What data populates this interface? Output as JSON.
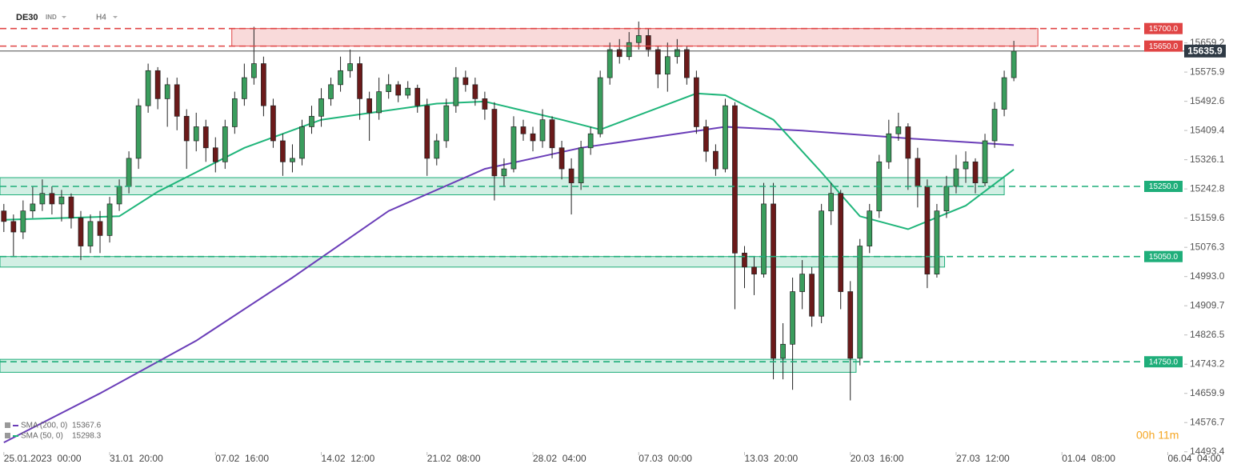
{
  "chart_data": {
    "type": "candlestick",
    "title": "DE30",
    "badge": "IND",
    "timeframe": "H4",
    "timer": "00h 11m",
    "up_color": "#3a9d5d",
    "down_color": "#6b1a1a",
    "last_price_color": "#2f3a45",
    "xlim": [
      -0.4,
      128.2
    ],
    "ylim": [
      14470,
      15770
    ],
    "xticks": [
      {
        "value": 0,
        "label": "25.01.2023  00:00"
      },
      {
        "value": 11,
        "label": "31.01  20:00"
      },
      {
        "value": 22,
        "label": "07.02  16:00"
      },
      {
        "value": 33,
        "label": "14.02  12:00"
      },
      {
        "value": 44,
        "label": "21.02  08:00"
      },
      {
        "value": 55,
        "label": "28.02  04:00"
      },
      {
        "value": 66,
        "label": "07.03  00:00"
      },
      {
        "value": 77,
        "label": "13.03  20:00"
      },
      {
        "value": 88,
        "label": "20.03  16:00"
      },
      {
        "value": 99,
        "label": "27.03  12:00"
      },
      {
        "value": 110,
        "label": "01.04  08:00"
      },
      {
        "value": 121,
        "label": "06.04  04:00"
      }
    ],
    "yticks": [
      15659.2,
      15575.9,
      15492.6,
      15409.4,
      15326.1,
      15242.8,
      15159.6,
      15076.3,
      {
        "value": 14993.0,
        "label": "14993.0"
      },
      14909.7,
      14826.5,
      14743.2,
      14659.9,
      14576.7,
      14493.4
    ],
    "open": [
      15180,
      15150,
      15120,
      15180,
      15200,
      15230,
      15200,
      15220,
      15160,
      15080,
      15150,
      15110,
      15200,
      15250,
      15330,
      15480,
      15580,
      15500,
      15540,
      15450,
      15380,
      15420,
      15360,
      15320,
      15420,
      15500,
      15560,
      15600,
      15480,
      15380,
      15320,
      15330,
      15420,
      15450,
      15500,
      15540,
      15580,
      15600,
      15500,
      15460,
      15520,
      15540,
      15510,
      15530,
      15480,
      15330,
      15380,
      15480,
      15560,
      15540,
      15500,
      15470,
      15280,
      15300,
      15420,
      15400,
      15380,
      15440,
      15360,
      15300,
      15260,
      15360,
      15400,
      15560,
      15640,
      15620,
      15660,
      15680,
      15640,
      15570,
      15620,
      15640,
      15560,
      15420,
      15350,
      15300,
      15480,
      15060,
      15020,
      15000,
      15200,
      14760,
      14800,
      14950,
      15000,
      14880,
      15180,
      15230,
      14950,
      14760,
      15080,
      15180,
      15320,
      15400,
      15420,
      15330,
      15250,
      15000,
      15180,
      15250,
      15300,
      15320,
      15260,
      15380,
      15470,
      15560
    ],
    "high": [
      15200,
      15170,
      15210,
      15250,
      15270,
      15250,
      15240,
      15230,
      15180,
      15170,
      15180,
      15220,
      15270,
      15350,
      15500,
      15600,
      15590,
      15560,
      15560,
      15470,
      15460,
      15440,
      15390,
      15440,
      15520,
      15600,
      15705,
      15620,
      15500,
      15400,
      15370,
      15440,
      15480,
      15530,
      15560,
      15620,
      15640,
      15620,
      15520,
      15560,
      15570,
      15550,
      15550,
      15540,
      15500,
      15400,
      15500,
      15590,
      15580,
      15560,
      15520,
      15490,
      15330,
      15450,
      15440,
      15420,
      15470,
      15450,
      15380,
      15330,
      15380,
      15420,
      15580,
      15660,
      15670,
      15690,
      15720,
      15700,
      15650,
      15660,
      15670,
      15650,
      15580,
      15440,
      15370,
      15500,
      15490,
      15080,
      15050,
      15260,
      15260,
      14860,
      14990,
      15040,
      15020,
      15200,
      15260,
      15240,
      14980,
      15100,
      15200,
      15340,
      15440,
      15460,
      15430,
      15360,
      15270,
      15200,
      15280,
      15340,
      15350,
      15330,
      15400,
      15490,
      15580,
      15665
    ],
    "low": [
      15120,
      15050,
      15100,
      15160,
      15180,
      15170,
      15150,
      15130,
      15040,
      15060,
      15060,
      15090,
      15180,
      15230,
      15300,
      15460,
      15470,
      15420,
      15410,
      15300,
      15350,
      15320,
      15290,
      15300,
      15400,
      15480,
      15540,
      15450,
      15360,
      15280,
      15290,
      15310,
      15400,
      15420,
      15480,
      15520,
      15560,
      15440,
      15380,
      15440,
      15500,
      15490,
      15500,
      15460,
      15280,
      15310,
      15360,
      15460,
      15520,
      15480,
      15440,
      15210,
      15250,
      15290,
      15380,
      15350,
      15360,
      15330,
      15270,
      15170,
      15240,
      15340,
      15390,
      15540,
      15600,
      15610,
      15640,
      15620,
      15530,
      15520,
      15600,
      15540,
      15400,
      15320,
      15280,
      15290,
      14900,
      14960,
      14940,
      14990,
      14700,
      14700,
      14670,
      14900,
      14850,
      14860,
      15140,
      14900,
      14640,
      14740,
      15060,
      15160,
      15300,
      15380,
      15240,
      15190,
      14960,
      14990,
      15160,
      15230,
      15260,
      15230,
      15250,
      15360,
      15450,
      15550
    ],
    "close": [
      15150,
      15120,
      15180,
      15200,
      15230,
      15200,
      15220,
      15160,
      15080,
      15150,
      15110,
      15200,
      15250,
      15330,
      15480,
      15580,
      15500,
      15540,
      15450,
      15380,
      15420,
      15360,
      15320,
      15420,
      15500,
      15560,
      15600,
      15480,
      15380,
      15320,
      15330,
      15420,
      15450,
      15500,
      15540,
      15580,
      15600,
      15500,
      15460,
      15520,
      15540,
      15510,
      15530,
      15480,
      15330,
      15380,
      15480,
      15560,
      15540,
      15500,
      15470,
      15280,
      15300,
      15420,
      15400,
      15380,
      15440,
      15360,
      15300,
      15260,
      15360,
      15400,
      15560,
      15640,
      15620,
      15660,
      15680,
      15640,
      15570,
      15620,
      15640,
      15560,
      15420,
      15350,
      15300,
      15480,
      15060,
      15020,
      15000,
      15200,
      14760,
      14800,
      14950,
      15000,
      14880,
      15180,
      15230,
      14950,
      14760,
      15080,
      15180,
      15320,
      15400,
      15420,
      15330,
      15250,
      15000,
      15180,
      15250,
      15300,
      15320,
      15260,
      15380,
      15470,
      15560,
      15635.9
    ],
    "series": [
      {
        "name": "SMA (200, 0)",
        "color": "#6a3db8",
        "x": [
          0,
          10,
          20,
          30,
          40,
          50,
          60,
          75,
          83,
          95,
          105
        ],
        "values": [
          14520,
          14660,
          14810,
          14990,
          15180,
          15300,
          15360,
          15420,
          15409,
          15385,
          15367.6
        ]
      },
      {
        "name": "SMA (50, 0)",
        "color": "#1fb57a",
        "x": [
          0,
          12,
          16,
          25,
          33,
          45,
          50,
          58,
          62,
          72,
          75,
          80,
          85,
          89,
          94,
          100,
          105
        ],
        "values": [
          15155,
          15165,
          15235,
          15360,
          15440,
          15486,
          15492,
          15440,
          15412,
          15515,
          15510,
          15440,
          15290,
          15165,
          15128,
          15195,
          15298.3
        ]
      }
    ],
    "levels": {
      "values": [
        15700,
        15650,
        15250,
        15050,
        14750
      ],
      "value_labels": [
        "15700.0",
        "15650.0",
        "15250.0",
        "15050.0",
        "14750.0"
      ],
      "colors": [
        "#e04545",
        "#e04545",
        "#1fae7a",
        "#1fae7a",
        "#1fae7a"
      ]
    },
    "zones": [
      {
        "low": 15650,
        "high": 15700,
        "start": 23.7,
        "end": 107.5,
        "color": "#e04545"
      },
      {
        "low": 15226,
        "high": 15275,
        "start": -0.4,
        "end": 104,
        "color": "#1fae7a"
      },
      {
        "low": 15020,
        "high": 15050,
        "start": -0.4,
        "end": 97.8,
        "color": "#1fae7a"
      },
      {
        "low": 14720,
        "high": 14757,
        "start": -0.4,
        "end": 88.6,
        "color": "#1fae7a"
      }
    ]
  }
}
